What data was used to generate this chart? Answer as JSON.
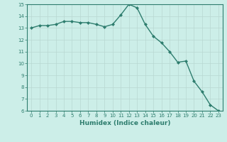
{
  "x": [
    0,
    1,
    2,
    3,
    4,
    5,
    6,
    7,
    8,
    9,
    10,
    11,
    12,
    13,
    14,
    15,
    16,
    17,
    18,
    19,
    20,
    21,
    22,
    23
  ],
  "y": [
    13.0,
    13.2,
    13.2,
    13.3,
    13.55,
    13.55,
    13.45,
    13.45,
    13.3,
    13.1,
    13.3,
    14.1,
    15.0,
    14.7,
    13.3,
    12.3,
    11.75,
    11.0,
    10.1,
    10.2,
    8.5,
    7.6,
    6.5,
    6.0
  ],
  "xlabel": "Humidex (Indice chaleur)",
  "ylim": [
    6,
    15
  ],
  "xlim": [
    -0.5,
    23.5
  ],
  "yticks": [
    6,
    7,
    8,
    9,
    10,
    11,
    12,
    13,
    14,
    15
  ],
  "xticks": [
    0,
    1,
    2,
    3,
    4,
    5,
    6,
    7,
    8,
    9,
    10,
    11,
    12,
    13,
    14,
    15,
    16,
    17,
    18,
    19,
    20,
    21,
    22,
    23
  ],
  "line_color": "#2e7d6e",
  "bg_color": "#cceee8",
  "grid_color_major": "#b8d8d2",
  "grid_color_minor": "#d4ece8",
  "marker": "D",
  "marker_size": 2.0,
  "line_width": 1.0,
  "tick_fontsize": 5.0,
  "xlabel_fontsize": 6.5
}
